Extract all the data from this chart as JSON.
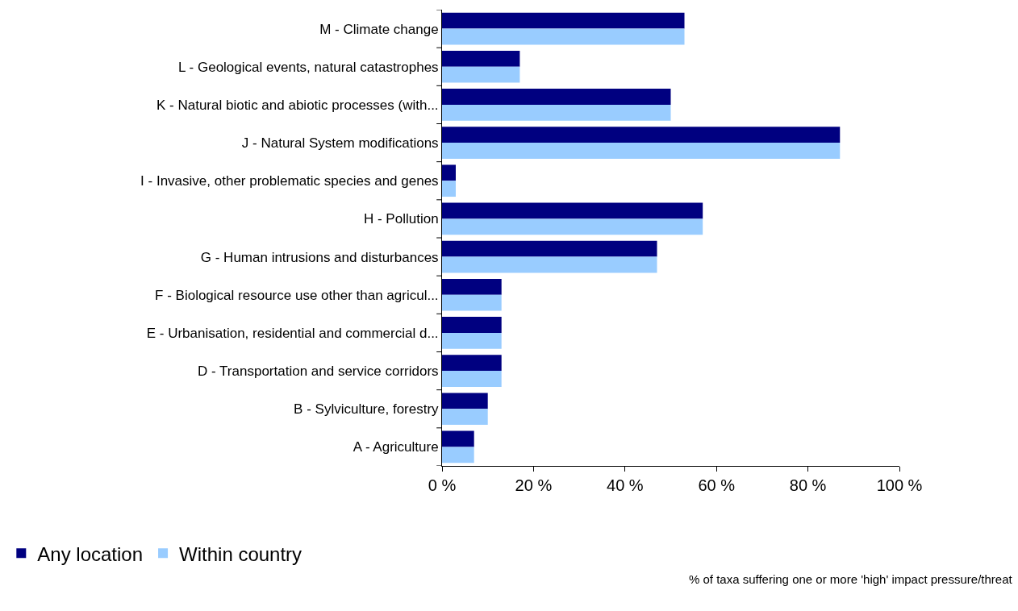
{
  "chart_data": {
    "type": "bar",
    "orientation": "horizontal",
    "categories": [
      "M - Climate change",
      "L - Geological events, natural catastrophes",
      "K - Natural biotic and abiotic processes (with...",
      "J - Natural System modifications",
      "I - Invasive, other problematic species and genes",
      "H - Pollution",
      "G - Human intrusions and disturbances",
      "F - Biological resource use other than agricul...",
      "E - Urbanisation, residential and commercial d...",
      "D - Transportation and service corridors",
      "B - Sylviculture, forestry",
      "A - Agriculture"
    ],
    "series": [
      {
        "name": "Any location",
        "color": "#000080",
        "values": [
          53,
          17,
          50,
          87,
          3,
          57,
          47,
          13,
          13,
          13,
          10,
          7
        ]
      },
      {
        "name": "Within country",
        "color": "#99ccff",
        "values": [
          53,
          17,
          50,
          87,
          3,
          57,
          47,
          13,
          13,
          13,
          10,
          7
        ]
      }
    ],
    "xlim": [
      0,
      100
    ],
    "xticks": [
      {
        "value": 0,
        "label": "0 %"
      },
      {
        "value": 20,
        "label": "20 %"
      },
      {
        "value": 40,
        "label": "40 %"
      },
      {
        "value": 60,
        "label": "60 %"
      },
      {
        "value": 80,
        "label": "80 %"
      },
      {
        "value": 100,
        "label": "100 %"
      }
    ],
    "annotations": [
      "% of taxa suffering one or more 'high' impact pressure/threat"
    ],
    "legend": "bottom left",
    "grid": false
  }
}
